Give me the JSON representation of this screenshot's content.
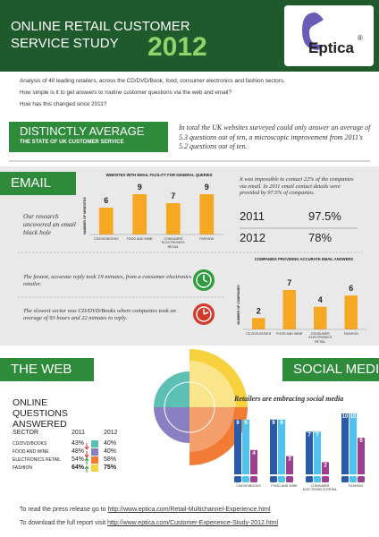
{
  "header": {
    "title": "ONLINE RETAIL CUSTOMER SERVICE STUDY",
    "year": "2012",
    "logo": "Eptica",
    "logo_mark": "®"
  },
  "intro": [
    "Analysis of 40 leading retailers, across the CD/DVD/Book, food, consumer electronics and fashion sectors.",
    "How simple is it to get answers to routine customer questions via the web and email?",
    "How has this changed since 2011?"
  ],
  "summary": {
    "heading": "DISTINCTLY AVERAGE",
    "subheading": "THE STATE OF UK CUSTOMER SERVICE",
    "quote": "In total the UK websites surveyed could only answer an average of 5.3 questions out of ten, a microscopic improvement from 2011's 5.2 questions out of ten."
  },
  "email": {
    "heading": "EMAIL",
    "black_hole": "Our research uncovered an email black hole",
    "note": "It was impossible to contact 22% of the companies via email. In 2011 email contact details were provided by 97.5% of companies.",
    "contact_table": [
      [
        "2011",
        "97.5%"
      ],
      [
        "2012",
        "78%"
      ]
    ],
    "fastest": "The fastest, accurate reply took 19 minutes, from a consumer electronics retailer.",
    "slowest": "The slowest sector was CD/DVD/Books where companies took an average of 93 hours and 22 minutes to reply.",
    "facility_chart": {
      "type": "bar",
      "title": "WEBSITES WITH EMAIL FACILITY FOR GENERAL QUERIES",
      "y_label": "NUMBER OF WEBSITES",
      "categories": [
        "CD/DVD/BOOKS",
        "FOOD AND WINE",
        "CONSUMER ELECTRONICS RETAIL",
        "FASHION"
      ],
      "values": [
        6,
        9,
        7,
        9
      ],
      "color": "#f7a823",
      "ylim": [
        0,
        10
      ]
    },
    "accuracy_chart": {
      "type": "bar",
      "title": "COMPANIES PROVIDING ACCURATE EMAIL ANSWERS",
      "y_label": "NUMBER OF COMPANIES",
      "categories": [
        "CD-DVD-BOOKS",
        "FOOD AND WINE",
        "CONSUMER ELECTRONICS RETAIL",
        "FASHION"
      ],
      "values": [
        2,
        7,
        4,
        6
      ],
      "color": "#f7a823",
      "ylim": [
        0,
        10
      ]
    }
  },
  "web": {
    "heading": "THE WEB",
    "subheading": "ONLINE QUESTIONS ANSWERED",
    "table": {
      "header": [
        "SECTOR",
        "2011",
        "2012"
      ],
      "rows": [
        [
          "CD/DVD/BOOKS",
          "43%",
          "40%"
        ],
        [
          "FOOD AND WINE",
          "48%",
          "40%"
        ],
        [
          "ELECTRONICS RETAIL",
          "54%",
          "58%"
        ],
        [
          "FASHION",
          "64%",
          "75%"
        ]
      ]
    }
  },
  "social": {
    "heading": "SOCIAL MEDIA",
    "subheading": "Retailers are embracing social media",
    "chart": {
      "type": "grouped-bar",
      "categories": [
        "CD/DVD/BOOKS",
        "FOOD AND WINE",
        "CONSUMER ELECTRONICS RETAIL",
        "FASHION"
      ],
      "series": [
        {
          "color": "#2d5aa8",
          "values": [
            9,
            9,
            7,
            10
          ]
        },
        {
          "color": "#4fc3ef",
          "values": [
            9,
            9,
            7,
            10
          ]
        },
        {
          "color": "#9b3f8e",
          "values": [
            4,
            3,
            2,
            6
          ]
        }
      ],
      "ylim": [
        0,
        10
      ]
    }
  },
  "footer": [
    {
      "text": "To read the press release go to ",
      "link": "http://www.eptica.com/Retail-Multichannel-Experience.html"
    },
    {
      "text": "To download the full report visit ",
      "link": "http://www.eptica.com/Customer-Experience-Study-2012.html"
    }
  ]
}
